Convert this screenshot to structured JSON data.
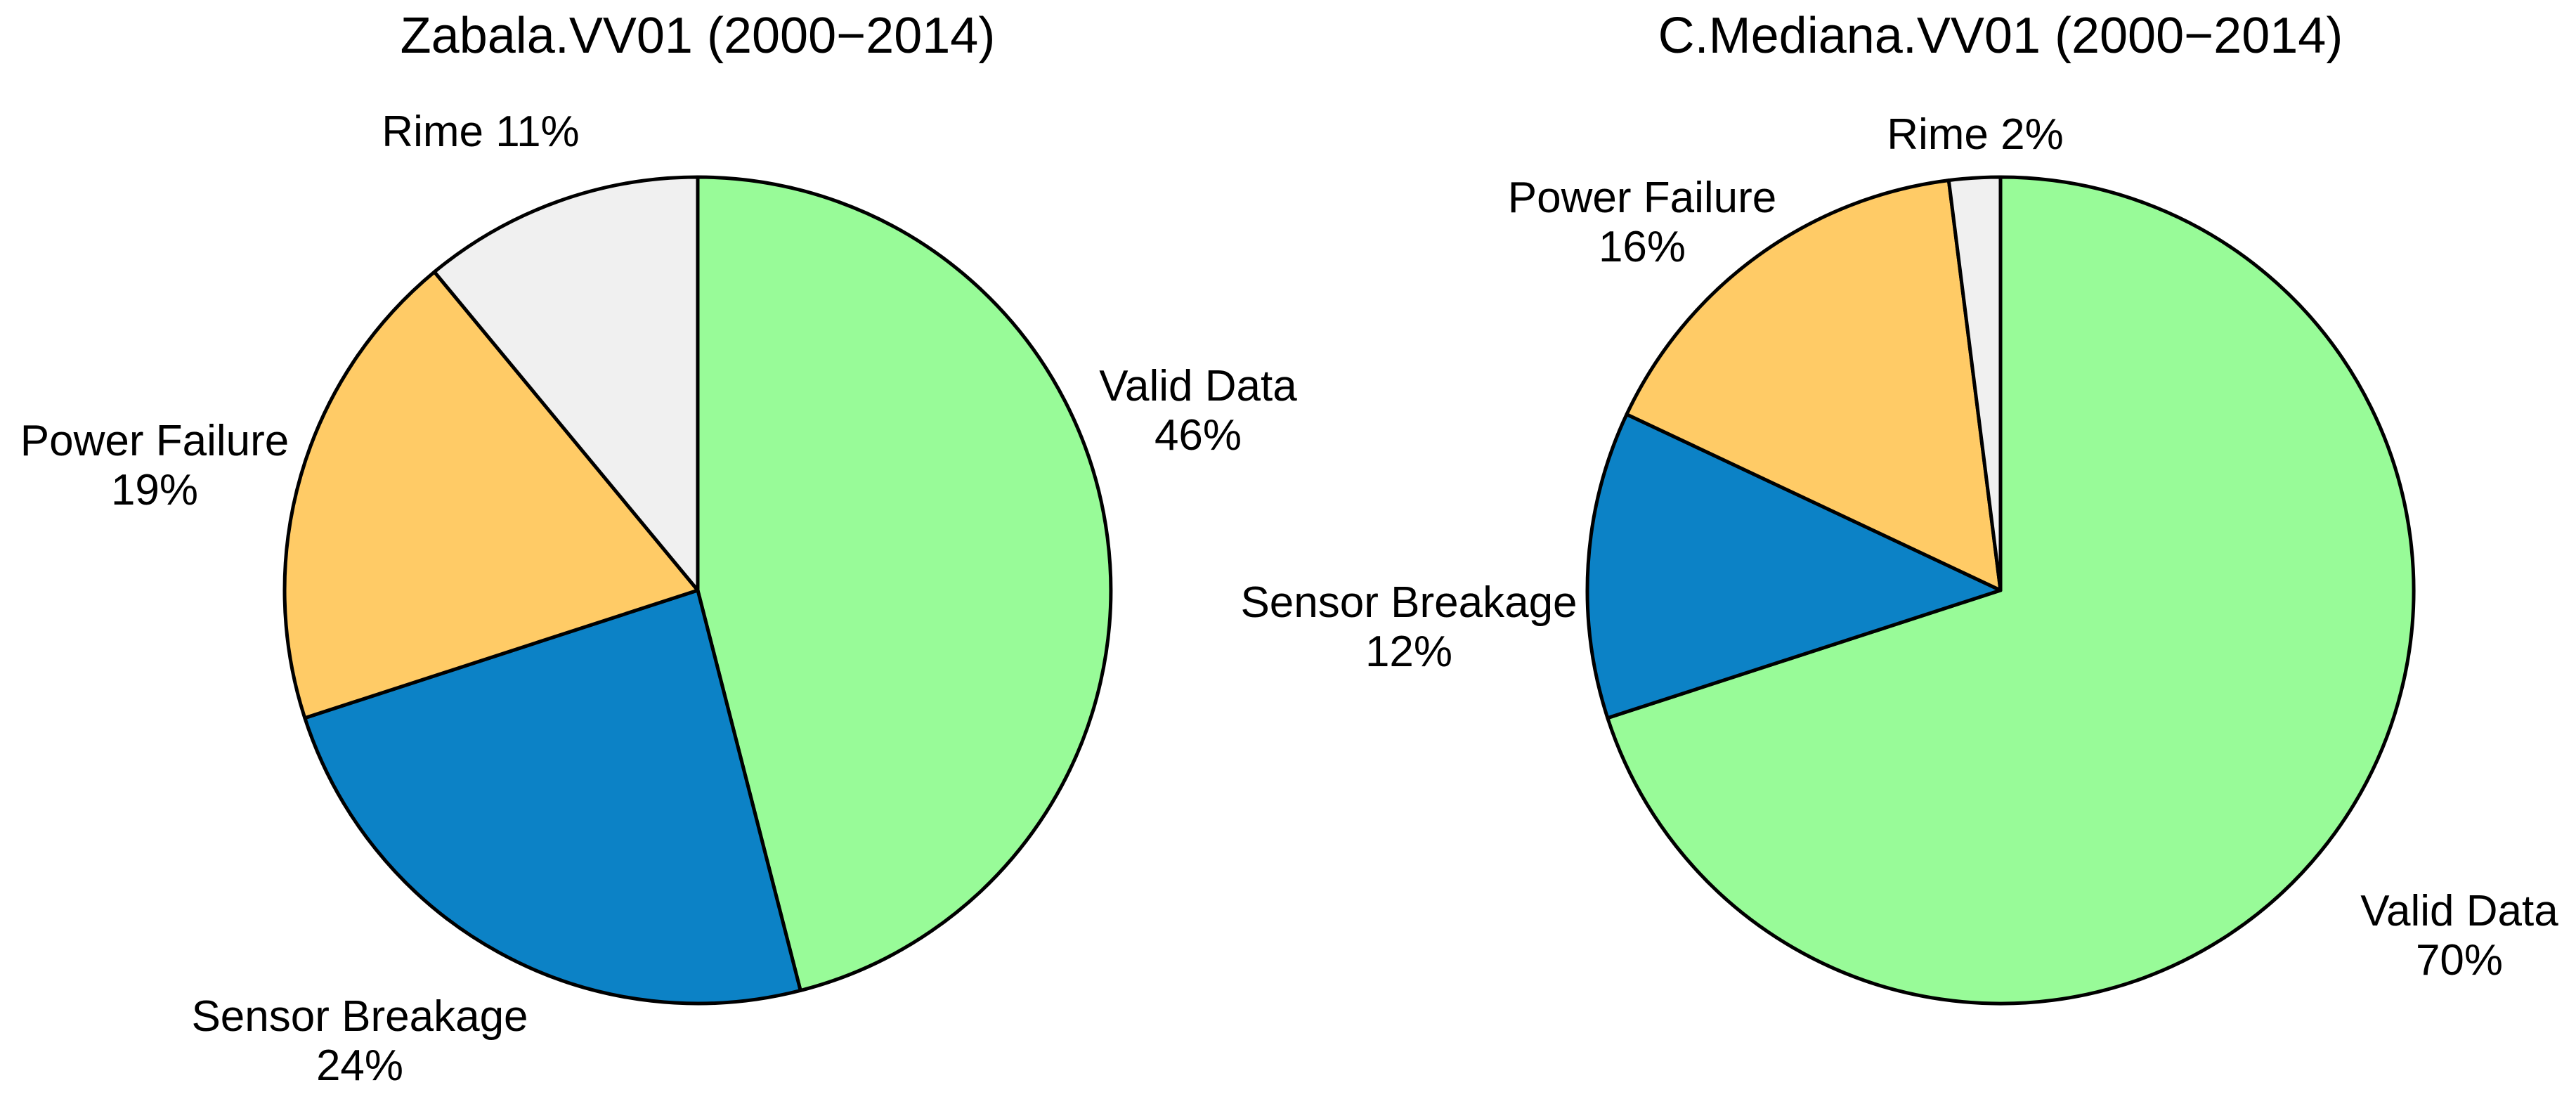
{
  "figure": {
    "background": "#FFFFFF",
    "text_color": "#000000",
    "stroke_color": "#000000"
  },
  "chart_data": [
    {
      "type": "pie",
      "title": "Zabala.VV01 (2000−2014)",
      "start_angle_deg": 90,
      "direction": "clockwise",
      "legend": "none",
      "categories": [
        "Valid Data",
        "Sensor Breakage",
        "Power Failure",
        "Rime"
      ],
      "values": [
        46,
        24,
        19,
        11
      ],
      "unit": "%",
      "slices": [
        {
          "name": "Valid Data",
          "value": 46,
          "color": "#98FB98",
          "lines": [
            "Valid Data",
            "46%"
          ],
          "label_x": 1705,
          "label_y": 570
        },
        {
          "name": "Sensor Breakage",
          "value": 24,
          "color": "#0C82C6",
          "lines": [
            "Sensor Breakage",
            "24%"
          ],
          "label_x": 512,
          "label_y": 1467
        },
        {
          "name": "Power Failure",
          "value": 19,
          "color": "#FFCB66",
          "lines": [
            "Power Failure",
            "19%"
          ],
          "label_x": 220,
          "label_y": 648
        },
        {
          "name": "Rime",
          "value": 11,
          "color": "#F0F0F0",
          "lines": [
            "Rime 11%"
          ],
          "label_x": 684,
          "label_y": 208
        }
      ]
    },
    {
      "type": "pie",
      "title": "C.Mediana.VV01 (2000−2014)",
      "start_angle_deg": 90,
      "direction": "clockwise",
      "legend": "none",
      "categories": [
        "Valid Data",
        "Sensor Breakage",
        "Power Failure",
        "Rime"
      ],
      "values": [
        70,
        12,
        16,
        2
      ],
      "unit": "%",
      "slices": [
        {
          "name": "Valid Data",
          "value": 70,
          "color": "#98FB98",
          "lines": [
            "Valid Data",
            "70%"
          ],
          "label_x": 3500,
          "label_y": 1317
        },
        {
          "name": "Sensor Breakage",
          "value": 12,
          "color": "#0C82C6",
          "lines": [
            "Sensor Breakage",
            "12%"
          ],
          "label_x": 2005,
          "label_y": 878
        },
        {
          "name": "Power Failure",
          "value": 16,
          "color": "#FFCB66",
          "lines": [
            "Power Failure",
            "16%"
          ],
          "label_x": 2337,
          "label_y": 302
        },
        {
          "name": "Rime",
          "value": 2,
          "color": "#F0F0F0",
          "lines": [
            "Rime 2%"
          ],
          "label_x": 2811,
          "label_y": 212
        }
      ]
    }
  ]
}
